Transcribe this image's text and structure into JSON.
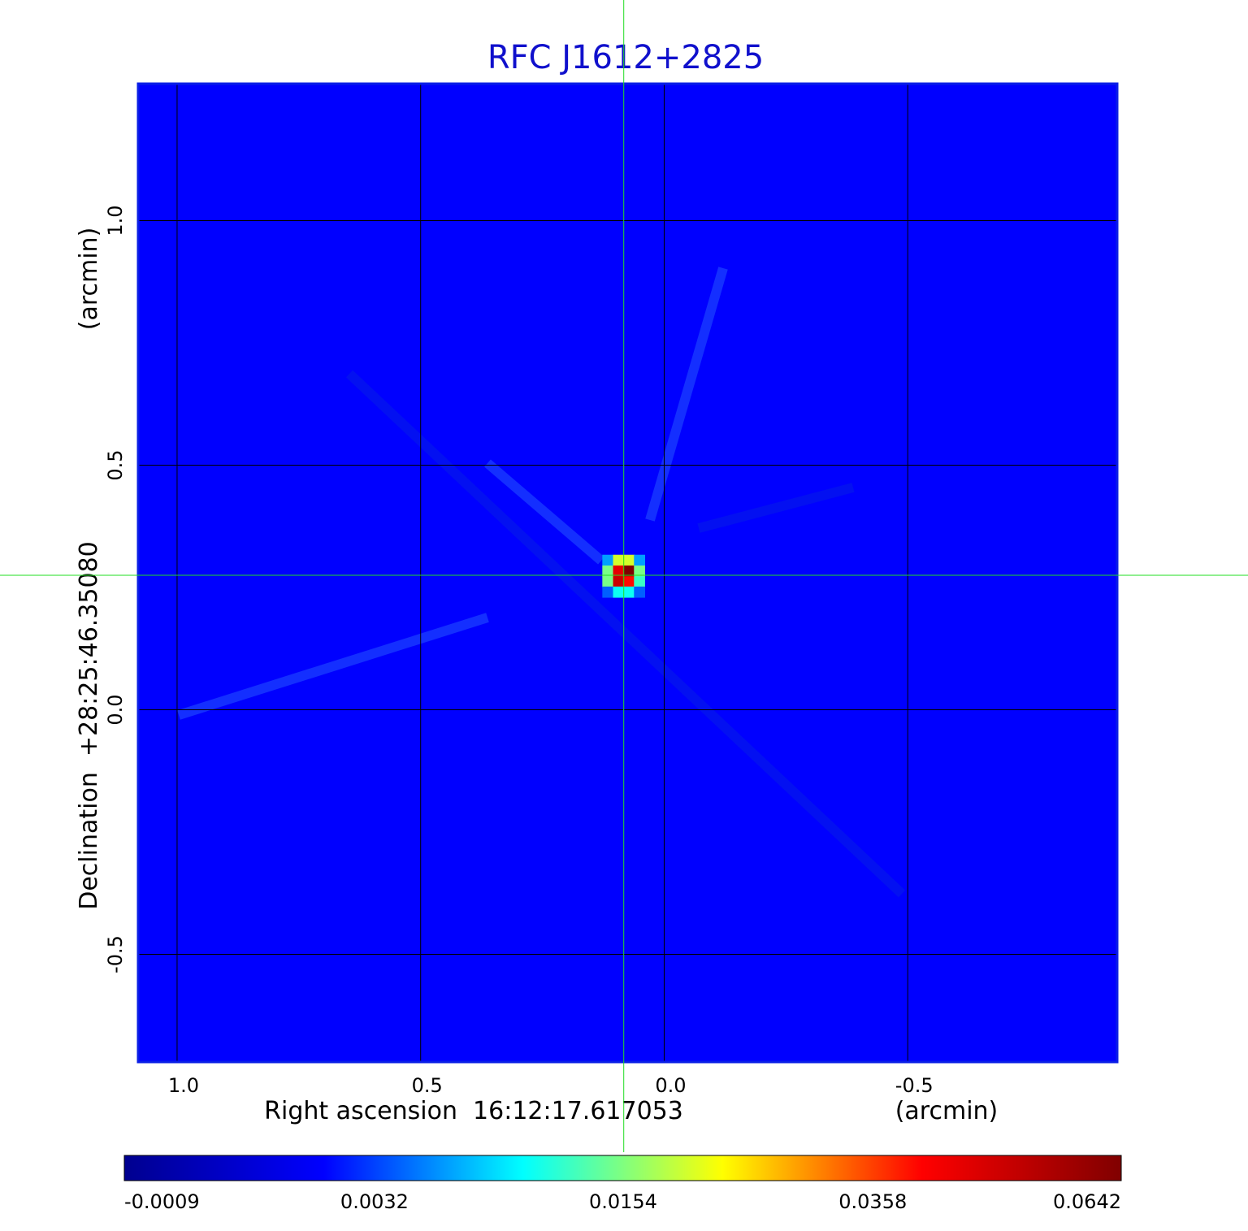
{
  "chart_data": {
    "type": "image",
    "title": "RFC J1612+2825",
    "x_label": "Right ascension  16:12:17.617053",
    "x_unit": "(arcmin)",
    "y_label": "Declination  +28:25:46.35080",
    "y_unit": "(arcmin)",
    "xlim": [
      1.08,
      -0.93
    ],
    "ylim": [
      -0.72,
      1.28
    ],
    "xticks": [
      {
        "value": 1,
        "label": "1.0"
      },
      0.5,
      {
        "value": 0,
        "label": "0.0"
      },
      -0.5
    ],
    "yticks": [
      {
        "value": 1,
        "label": "1.0"
      },
      0.5,
      {
        "value": 0,
        "label": "0.0"
      },
      -0.5
    ],
    "grid": true,
    "frame_color": "#0a1ee6",
    "grid_color": "#000000",
    "crosshair": {
      "x": 0.083,
      "y": 0.275,
      "color": "#22dd22"
    },
    "background": 0.0017,
    "image": {
      "x": [
        0.116,
        0.094,
        0.072,
        0.051
      ],
      "y": [
        0.306,
        0.284,
        0.262,
        0.241
      ],
      "z": [
        [
          0.006,
          0.02,
          0.02,
          0.006
        ],
        [
          0.015,
          0.045,
          0.0642,
          0.015
        ],
        [
          0.015,
          0.05,
          0.04,
          0.012
        ],
        [
          0.004,
          0.01,
          0.01,
          0.004
        ]
      ]
    },
    "colorbar": {
      "lim": [
        -0.0009,
        0.0642
      ],
      "scale": "sqrt",
      "ticks": [
        -0.0009,
        0.0032,
        0.0154,
        0.0358,
        0.0642
      ],
      "colormap": [
        "#00008f",
        "#0000ff",
        "#00ffff",
        "#ffff00",
        "#ff0000",
        "#800000"
      ]
    }
  }
}
